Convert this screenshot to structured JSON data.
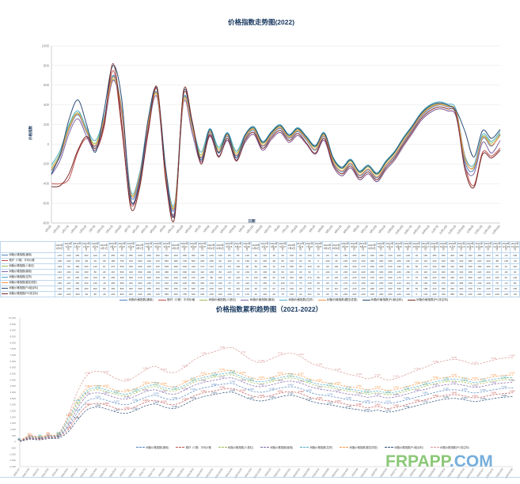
{
  "watermark": {
    "green": "FRPAPP",
    "blue": ".COM",
    "green_color": "#8CC878",
    "blue_color": "#76AEDC"
  },
  "table": {
    "year_prefix": "2022年",
    "corner_label": ""
  },
  "colors": {
    "title": "#17375E",
    "grid": "#E3E3E3",
    "axis": "#BFBFBF",
    "tick_text": "#7F7F7F",
    "table_border": "#BDD7EE"
  },
  "chart_data": [
    {
      "id": "trend2022",
      "type": "line",
      "title": "价格指数走势图(2022)",
      "xlabel": "日期",
      "ylabel": "价格指数",
      "ylim": [
        -800,
        1000
      ],
      "ytick_step": 200,
      "grid": true,
      "legend_position": "bottom",
      "categories": [
        "1月3日",
        "1月10日",
        "1月17日",
        "1月24日",
        "1月31日",
        "2月7日",
        "2月14日",
        "2月21日",
        "2月28日",
        "3月7日",
        "3月14日",
        "3月21日",
        "3月28日",
        "4月4日",
        "4月11日",
        "4月18日",
        "4月25日",
        "5月2日",
        "5月9日",
        "5月16日",
        "5月23日",
        "5月30日",
        "6月6日",
        "6月13日",
        "6月20日",
        "6月27日",
        "7月4日",
        "7月11日",
        "7月18日",
        "7月25日",
        "8月1日",
        "8月8日",
        "8月15日",
        "8月22日",
        "8月29日",
        "9月5日",
        "9月12日",
        "9月19日",
        "9月26日",
        "10月3日",
        "10月10日",
        "10月17日",
        "10月24日",
        "10月31日",
        "11月7日",
        "11月14日",
        "11月21日",
        "11月28日",
        "12月5日",
        "12月12日",
        "12月19日",
        "12月26日"
      ],
      "series": [
        {
          "name": "树脂价格指数(通用)",
          "color": "#4F81BD",
          "values": [
            -270,
            -120,
            150,
            300,
            120,
            -20,
            250,
            700,
            350,
            -520,
            -350,
            200,
            520,
            -300,
            -650,
            460,
            150,
            -140,
            120,
            -80,
            80,
            -120,
            60,
            140,
            -20,
            90,
            160,
            60,
            130,
            40,
            -60,
            80,
            -180,
            -280,
            -200,
            -320,
            -260,
            -340,
            -220,
            -120,
            20,
            150,
            280,
            360,
            400,
            380,
            320,
            -180,
            -260,
            60,
            -20,
            100
          ]
        },
        {
          "name": "玻纤（C玻）平均价格",
          "color": "#C0504D",
          "values": [
            -400,
            -400,
            -350,
            -80,
            60,
            -60,
            180,
            750,
            150,
            -600,
            -420,
            120,
            560,
            -380,
            -700,
            500,
            200,
            -180,
            90,
            -120,
            40,
            -160,
            20,
            100,
            -60,
            50,
            120,
            20,
            90,
            0,
            -100,
            40,
            -220,
            -320,
            -240,
            -360,
            -300,
            -380,
            -260,
            -160,
            -20,
            110,
            240,
            320,
            360,
            340,
            280,
            -220,
            -420,
            -80,
            -120,
            -40
          ]
        },
        {
          "name": "树脂价格指数(人造石)",
          "color": "#9BBB59",
          "values": [
            -240,
            -90,
            180,
            320,
            140,
            10,
            270,
            660,
            330,
            -490,
            -320,
            220,
            500,
            -280,
            -620,
            440,
            170,
            -110,
            140,
            -50,
            100,
            -90,
            80,
            160,
            10,
            110,
            180,
            80,
            150,
            60,
            -30,
            100,
            -150,
            -250,
            -170,
            -290,
            -230,
            -310,
            -190,
            -90,
            50,
            170,
            300,
            380,
            410,
            390,
            330,
            -150,
            -230,
            80,
            10,
            110
          ]
        },
        {
          "name": "树脂价格指数(缠绕)",
          "color": "#8064A2",
          "values": [
            -310,
            -160,
            110,
            260,
            80,
            -60,
            210,
            650,
            310,
            -560,
            -390,
            160,
            480,
            -340,
            -690,
            420,
            110,
            -180,
            80,
            -120,
            40,
            -160,
            20,
            100,
            -60,
            50,
            120,
            20,
            90,
            0,
            -100,
            40,
            -220,
            -320,
            -240,
            -360,
            -300,
            -380,
            -260,
            -160,
            -20,
            110,
            240,
            320,
            360,
            340,
            280,
            -220,
            -300,
            20,
            -90,
            40
          ]
        },
        {
          "name": "树脂价格指数(拉挤)",
          "color": "#4BACC6",
          "values": [
            -210,
            -60,
            200,
            340,
            160,
            40,
            290,
            690,
            360,
            -470,
            -300,
            240,
            520,
            -260,
            -600,
            470,
            190,
            -80,
            160,
            -30,
            120,
            -70,
            100,
            180,
            30,
            130,
            200,
            100,
            170,
            80,
            -10,
            120,
            -130,
            -230,
            -150,
            -270,
            -210,
            -290,
            -170,
            -70,
            70,
            190,
            320,
            400,
            430,
            410,
            350,
            -120,
            -210,
            100,
            30,
            130
          ]
        },
        {
          "name": "树脂价格指数(模压成型)",
          "color": "#F79646",
          "values": [
            -260,
            -110,
            160,
            310,
            130,
            -10,
            260,
            680,
            340,
            -500,
            -330,
            210,
            510,
            -290,
            -630,
            450,
            160,
            -130,
            130,
            -70,
            90,
            -110,
            70,
            150,
            -10,
            100,
            170,
            70,
            140,
            50,
            -50,
            90,
            -170,
            -270,
            -190,
            -310,
            -250,
            -330,
            -210,
            -110,
            30,
            160,
            290,
            370,
            405,
            385,
            330,
            -140,
            -240,
            70,
            -10,
            90
          ]
        },
        {
          "name": "树脂价格指数(PU组合料)",
          "color": "#2C4D75",
          "values": [
            -300,
            -100,
            250,
            450,
            200,
            -80,
            350,
            800,
            450,
            -560,
            -380,
            260,
            560,
            -250,
            -720,
            520,
            220,
            -160,
            150,
            -90,
            110,
            -140,
            90,
            170,
            20,
            120,
            190,
            90,
            160,
            70,
            -20,
            110,
            -140,
            -240,
            -160,
            -280,
            -220,
            -300,
            -180,
            -80,
            60,
            180,
            310,
            390,
            420,
            400,
            340,
            130,
            -130,
            140,
            60,
            150
          ]
        },
        {
          "name": "树脂价格指数(PU浇注料)",
          "color": "#772C2A",
          "values": [
            -430,
            -420,
            -300,
            -60,
            80,
            -40,
            220,
            820,
            200,
            -640,
            -450,
            140,
            580,
            -360,
            -750,
            540,
            230,
            -200,
            100,
            -130,
            60,
            -170,
            40,
            120,
            -40,
            70,
            140,
            40,
            110,
            10,
            -90,
            60,
            -200,
            -300,
            -220,
            -340,
            -280,
            -360,
            -240,
            -140,
            0,
            130,
            260,
            340,
            380,
            360,
            300,
            -260,
            -440,
            -100,
            -140,
            -60
          ]
        }
      ]
    },
    {
      "id": "cumulative",
      "type": "line",
      "title": "价格指数累积趋势图（2021-2022）",
      "ylim": [
        -2000,
        10000
      ],
      "ytick_step": 500,
      "grid": false,
      "legend_position": "bottom",
      "categories": [
        "2021/1/4",
        "2021/1/18",
        "2021/2/1",
        "2021/2/15",
        "2021/3/1",
        "2021/3/15",
        "2021/3/29",
        "2021/4/12",
        "2021/4/26",
        "2021/5/10",
        "2021/5/24",
        "2021/6/7",
        "2021/6/21",
        "2021/7/5",
        "2021/7/19",
        "2021/8/2",
        "2021/8/16",
        "2021/8/30",
        "2021/9/13",
        "2021/9/27",
        "2021/10/11",
        "2021/10/25",
        "2021/11/8",
        "2021/11/22",
        "2021/12/6",
        "2021/12/20",
        "2022/1/3",
        "2022/1/17",
        "2022/1/31",
        "2022/2/14",
        "2022/2/28",
        "2022/3/14",
        "2022/3/28",
        "2022/4/11",
        "2022/4/25",
        "2022/5/9",
        "2022/5/23",
        "2022/6/6",
        "2022/6/20",
        "2022/7/4",
        "2022/7/18",
        "2022/8/1",
        "2022/8/15",
        "2022/8/29",
        "2022/9/12",
        "2022/9/26",
        "2022/10/10",
        "2022/10/24",
        "2022/11/7",
        "2022/11/21",
        "2022/12/5",
        "2022/12/19"
      ],
      "series": [
        {
          "name": "树脂价格指数(通用)",
          "color": "#4F81BD",
          "values": [
            50,
            300,
            250,
            380,
            450,
            1200,
            2400,
            3300,
            3500,
            3350,
            3100,
            3000,
            3250,
            3600,
            3750,
            3500,
            3400,
            3700,
            4100,
            4350,
            4500,
            4650,
            4700,
            4400,
            4100,
            4000,
            4150,
            4350,
            4450,
            4300,
            4000,
            3800,
            3700,
            3550,
            3400,
            3300,
            3150,
            3250,
            3100,
            3200,
            3400,
            3600,
            3800,
            4000,
            4150,
            4200,
            4100,
            3950,
            4050,
            4200,
            4300,
            4350
          ]
        },
        {
          "name": "玻纤（C玻）平均价格",
          "color": "#C0504D",
          "values": [
            40,
            250,
            200,
            320,
            380,
            1000,
            2100,
            2900,
            3100,
            2950,
            2700,
            2600,
            2850,
            3200,
            3350,
            3100,
            3000,
            3300,
            3700,
            3950,
            4100,
            4250,
            4300,
            4000,
            3700,
            3600,
            3750,
            3950,
            4050,
            3900,
            3600,
            3400,
            3300,
            3150,
            3000,
            2900,
            2750,
            2850,
            2700,
            2800,
            3000,
            3200,
            3400,
            3600,
            3750,
            3800,
            3700,
            3550,
            3650,
            3800,
            3900,
            3950
          ]
        },
        {
          "name": "树脂价格指数(人造石)",
          "color": "#9BBB59",
          "values": [
            70,
            380,
            320,
            450,
            520,
            1600,
            3000,
            4000,
            4200,
            4050,
            3800,
            3700,
            3950,
            4300,
            4450,
            4200,
            4100,
            4400,
            4800,
            5050,
            5200,
            5350,
            5400,
            5100,
            4800,
            4700,
            4850,
            5050,
            5150,
            5000,
            4700,
            4500,
            4400,
            4250,
            4100,
            4000,
            3850,
            3950,
            3800,
            3900,
            4100,
            4300,
            4500,
            4700,
            4850,
            4900,
            4800,
            4650,
            4750,
            4900,
            5000,
            5050
          ]
        },
        {
          "name": "树脂价格指数(缠绕)",
          "color": "#8064A2",
          "values": [
            55,
            330,
            270,
            400,
            470,
            1350,
            2750,
            3750,
            3950,
            3800,
            3550,
            3450,
            3700,
            4050,
            4200,
            3950,
            3850,
            4150,
            4550,
            4800,
            4950,
            5100,
            5150,
            4850,
            4550,
            4450,
            4600,
            4800,
            4900,
            4750,
            4450,
            4250,
            4150,
            4000,
            3850,
            3750,
            3600,
            3700,
            3550,
            3650,
            3850,
            4050,
            4250,
            4450,
            4600,
            4650,
            4550,
            4400,
            4500,
            4650,
            4750,
            4800
          ]
        },
        {
          "name": "树脂价格指数(拉挤)",
          "color": "#4BACC6",
          "values": [
            90,
            450,
            380,
            500,
            600,
            1800,
            3200,
            4150,
            4350,
            4200,
            3950,
            3850,
            4100,
            4450,
            4600,
            4350,
            4250,
            4550,
            4950,
            5200,
            5350,
            5500,
            5550,
            5250,
            4950,
            4850,
            5000,
            5200,
            5300,
            5150,
            4850,
            4650,
            4550,
            4400,
            4250,
            4150,
            4000,
            4100,
            3950,
            4050,
            4250,
            4450,
            4650,
            4850,
            5000,
            5050,
            4950,
            4800,
            4900,
            5050,
            5150,
            5200
          ]
        },
        {
          "name": "树脂价格指数(模压成型)",
          "color": "#F79646",
          "values": [
            100,
            500,
            420,
            550,
            680,
            2000,
            3400,
            4350,
            4550,
            4400,
            4150,
            4050,
            4300,
            4650,
            4800,
            4550,
            4450,
            4750,
            5150,
            5400,
            5550,
            5700,
            5750,
            5450,
            5150,
            5050,
            5200,
            5400,
            5500,
            5350,
            5050,
            4850,
            4750,
            4600,
            4450,
            4350,
            4200,
            4300,
            4150,
            4250,
            4450,
            4650,
            4850,
            5050,
            5200,
            5250,
            5150,
            5000,
            5100,
            5250,
            5350,
            5400
          ]
        },
        {
          "name": "树脂价格指数(PU组合料)",
          "color": "#2C4D75",
          "values": [
            30,
            200,
            160,
            260,
            300,
            800,
            1800,
            2600,
            2800,
            2650,
            2400,
            2300,
            2550,
            2900,
            3050,
            2800,
            2700,
            3000,
            3400,
            3650,
            3800,
            3950,
            4000,
            3700,
            3400,
            3300,
            3450,
            3650,
            3750,
            3600,
            3300,
            3100,
            3000,
            2850,
            2700,
            2600,
            2450,
            2550,
            2400,
            2500,
            2700,
            2900,
            3100,
            3300,
            3450,
            3500,
            3400,
            3250,
            3350,
            3500,
            3600,
            3650
          ]
        },
        {
          "name": "树脂价格指数(PU浇注料)",
          "color": "#D99694",
          "values": [
            80,
            420,
            350,
            520,
            650,
            2100,
            4100,
            5400,
            5700,
            5500,
            5100,
            4900,
            5300,
            5800,
            6100,
            5700,
            5600,
            6000,
            6600,
            7000,
            7250,
            7500,
            7600,
            7100,
            6600,
            6400,
            6700,
            7000,
            7150,
            6900,
            6400,
            6100,
            5900,
            5700,
            5450,
            5300,
            5100,
            5250,
            5000,
            5150,
            5450,
            5750,
            6050,
            6350,
            6550,
            6650,
            6500,
            6250,
            6400,
            6600,
            6750,
            6800
          ]
        }
      ]
    }
  ]
}
